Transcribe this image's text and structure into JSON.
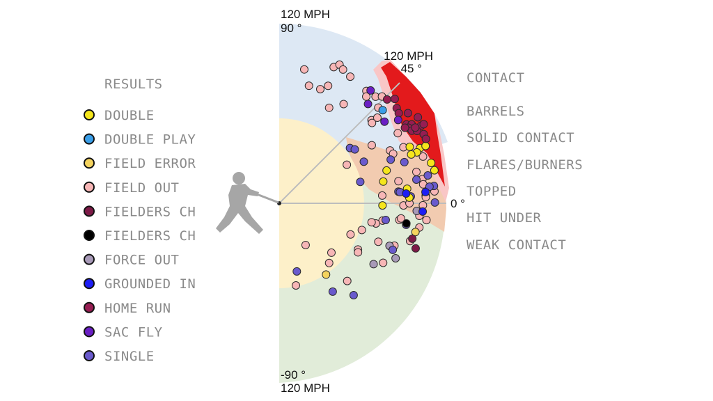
{
  "chart_data": {
    "type": "scatter",
    "coordinate_system": "polar",
    "radial_axis": {
      "label": "MPH",
      "max": 120
    },
    "angular_axis": {
      "range": [
        -90,
        90
      ],
      "unit": "°"
    },
    "axis_labels": {
      "top": [
        "120 MPH",
        "90 °"
      ],
      "diag": [
        "120 MPH",
        "45 °"
      ],
      "zero": "0 °",
      "bottom": [
        "-90 °",
        "120 MPH"
      ]
    },
    "zones": [
      "CONTACT",
      "BARRELS",
      "SOLID CONTACT",
      "FLARES/BURNERS",
      "TOPPED",
      "HIT UNDER",
      "WEAK CONTACT"
    ],
    "zone_colors": {
      "barrels": "#e31a1c",
      "solid_contact": "#f9c6c6",
      "flares_burners": "#f2cbb0",
      "topped": "#e1ecd9",
      "hit_under": "#dde8f4",
      "weak_contact": "#fdf0c9"
    },
    "legend": {
      "title": "RESULTS",
      "placement": "left"
    },
    "series": [
      {
        "name": "FIELD OUT",
        "color": "#f7b6b6",
        "launch_angle": [
          79.4,
          68.2,
          66.5,
          64.5,
          60.7,
          75.8,
          70.2,
          67.4,
          62.4,
          57,
          52.2,
          50.8,
          47.9,
          46.1,
          44,
          42,
          40.9,
          41.1,
          30.6,
          32.1,
          25.5,
          23.5,
          24.3,
          29.7,
          10.5,
          12.9,
          9.6,
          18,
          4.3,
          -1,
          3,
          4.4,
          7.5,
          2.4,
          0,
          -0.8,
          -5.1,
          -6.5,
          -9.8,
          -16.1,
          -7.9,
          -7.1,
          -9.5,
          -11.8,
          -11.6,
          -17.9,
          -23.6,
          -21.2,
          -30.4,
          -20.2,
          -57.7,
          -43.4,
          -50.1,
          -78.5,
          -48.8,
          -31.9,
          -29.8
        ],
        "launch_speed": [
          91,
          98,
          101,
          99,
          97,
          81,
          81,
          85,
          72,
          79,
          95,
          92,
          96,
          99,
          92,
          83,
          82,
          87,
          92,
          73,
          82,
          83,
          91,
          52,
          81,
          94,
          97,
          101,
          69,
          83,
          98,
          104,
          97,
          98,
          87,
          96,
          94,
          99,
          95,
          91,
          81,
          82,
          70,
          66,
          63,
          58,
          52,
          71,
          61,
          82,
          33,
          48,
          52,
          56,
          69,
          62,
          80
        ]
      },
      {
        "name": "FORCE OUT",
        "color": "#a89ab8",
        "launch_angle": [
          -3.2,
          -21.1,
          -25.3,
          -32.8
        ],
        "launch_speed": [
          92,
          79,
          86,
          75
        ]
      },
      {
        "name": "SINGLE",
        "color": "#6a5acd",
        "launch_angle": [
          38,
          35.5,
          26.2,
          21.4,
          18.2,
          14.8,
          5.6,
          9.8,
          10.6,
          6.4,
          6.3,
          0.3,
          5.3,
          3,
          -8.9,
          -9.6,
          -22.3,
          -75.5,
          -58.8,
          -51
        ],
        "launch_speed": [
          60,
          62,
          63,
          80,
          88,
          56,
          80,
          93,
          101,
          104,
          101,
          104,
          81,
          88,
          72,
          86,
          82,
          47,
          69,
          79
        ]
      },
      {
        "name": "DOUBLE",
        "color": "#f5e61c",
        "launch_angle": [
          23.4,
          21.4,
          21.4,
          20.3,
          20.3,
          14.9,
          17,
          12,
          11.8,
          6.5,
          2.5,
          -1.2
        ],
        "launch_speed": [
          95,
          101,
          105,
          98,
          94,
          105,
          75,
          106,
          71,
          86,
          87,
          69
        ]
      },
      {
        "name": "DOUBLE PLAY",
        "color": "#3a9ee8",
        "launch_angle": [
          42
        ],
        "launch_speed": [
          93
        ]
      },
      {
        "name": "FIELD ERROR",
        "color": "#f4d35e",
        "launch_angle": [
          -11.9,
          -56.7
        ],
        "launch_speed": [
          93,
          57
        ]
      },
      {
        "name": "FIELDERS CH",
        "color": "#7d1a47",
        "launch_angle": [
          -14.9,
          -18.3
        ],
        "launch_speed": [
          92,
          96
        ]
      },
      {
        "name": "FIELDERS CH",
        "color": "#000000",
        "launch_angle": [
          -9
        ],
        "launch_speed": [
          86
        ]
      },
      {
        "name": "GROUNDED IN",
        "color": "#1d1df5",
        "launch_angle": [
          4.4,
          4.4,
          -3.3
        ],
        "launch_speed": [
          85,
          98,
          96
        ]
      },
      {
        "name": "HOME RUN",
        "color": "#961d52",
        "launch_angle": [
          43.9,
          42.1,
          39,
          37,
          35,
          31.8,
          31.8,
          30.8,
          28.7,
          28.7,
          30.3,
          28.7,
          27.7,
          25.6,
          23.7,
          29.1,
          31
        ],
        "launch_speed": [
          100,
          104,
          101,
          100,
          105,
          109,
          100,
          103,
          108,
          110,
          100,
          101,
          104,
          107,
          107,
          104,
          98
        ]
      },
      {
        "name": "SAC FLY",
        "color": "#6a1fc4",
        "launch_angle": [
          51,
          48.2,
          37.8,
          35
        ],
        "launch_speed": [
          97,
          89,
          89,
          97
        ]
      }
    ]
  },
  "legend_items": [
    {
      "label": "DOUBLE",
      "color": "#f5e61c"
    },
    {
      "label": "DOUBLE PLAY",
      "color": "#3a9ee8"
    },
    {
      "label": "FIELD ERROR",
      "color": "#f4d35e"
    },
    {
      "label": "FIELD OUT",
      "color": "#f7b6b6"
    },
    {
      "label": "FIELDERS CH",
      "color": "#7d1a47"
    },
    {
      "label": "FIELDERS CH",
      "color": "#000000"
    },
    {
      "label": "FORCE OUT",
      "color": "#a89ab8"
    },
    {
      "label": "GROUNDED IN",
      "color": "#1d1df5"
    },
    {
      "label": "HOME RUN",
      "color": "#961d52"
    },
    {
      "label": "SAC FLY",
      "color": "#6a1fc4"
    },
    {
      "label": "SINGLE",
      "color": "#6a5acd"
    }
  ]
}
